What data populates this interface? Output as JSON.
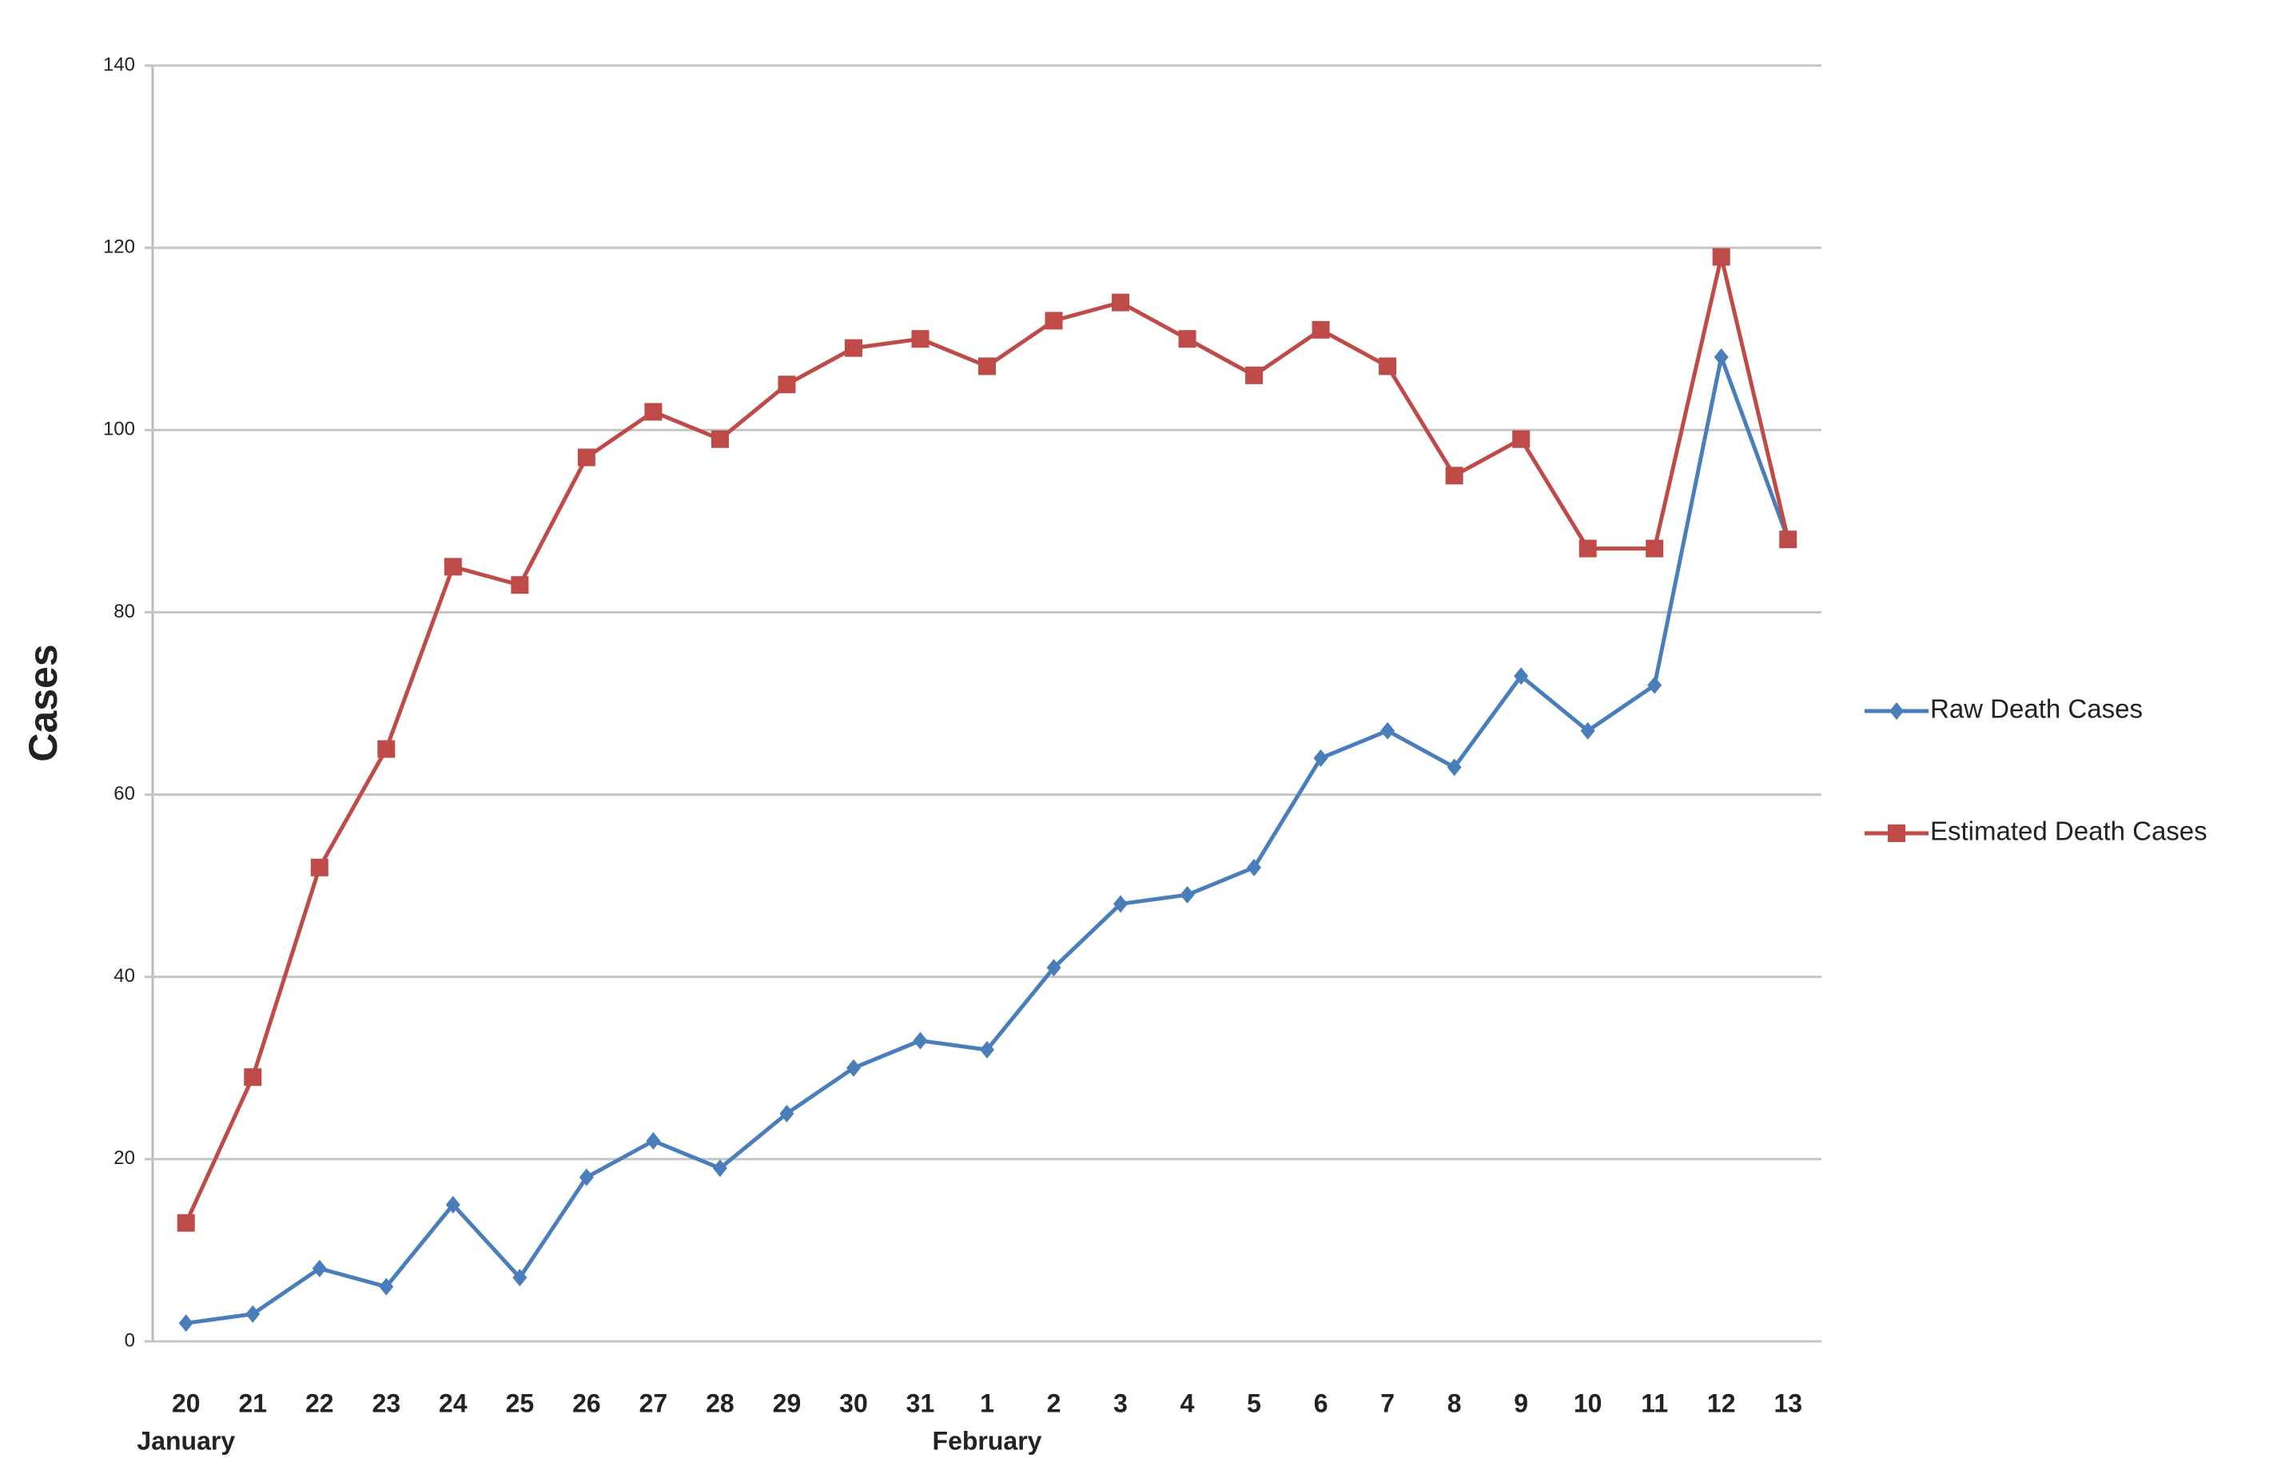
{
  "chart_data": {
    "type": "line",
    "y_label": "Cases",
    "categories": [
      "20",
      "21",
      "22",
      "23",
      "24",
      "25",
      "26",
      "27",
      "28",
      "29",
      "30",
      "31",
      "1",
      "2",
      "3",
      "4",
      "5",
      "6",
      "7",
      "8",
      "9",
      "10",
      "11",
      "12",
      "13"
    ],
    "month_labels": [
      {
        "label": "January",
        "at": 0
      },
      {
        "label": "February",
        "at": 12
      }
    ],
    "series": [
      {
        "name": "Raw Death Cases",
        "color": "#4a7ebb",
        "marker": "diamond",
        "values": [
          2,
          3,
          8,
          6,
          15,
          7,
          18,
          22,
          19,
          25,
          30,
          33,
          32,
          41,
          48,
          49,
          52,
          64,
          67,
          63,
          73,
          67,
          72,
          108,
          88
        ]
      },
      {
        "name": "Estimated Death Cases",
        "color": "#be4b48",
        "marker": "square",
        "values": [
          13,
          29,
          52,
          65,
          85,
          83,
          97,
          102,
          99,
          105,
          109,
          110,
          107,
          112,
          114,
          110,
          106,
          111,
          107,
          95,
          99,
          87,
          87,
          119,
          88
        ]
      }
    ],
    "ylim": [
      0,
      140
    ],
    "yticks": [
      0,
      20,
      40,
      60,
      80,
      100,
      120,
      140
    ],
    "grid": true,
    "legend": "right"
  }
}
